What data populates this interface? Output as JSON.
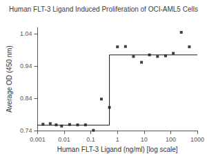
{
  "chart_data": {
    "type": "scatter",
    "title": "Human FLT-3 Ligand Induced Proliferation of OCI-AML5 Cells",
    "xlabel": "Human FLT-3 Ligand (ng/ml) [log scale]",
    "ylabel": "Average OD (450 nm)",
    "log": "x",
    "grid": false,
    "xlim": [
      0.001,
      1000
    ],
    "ylim": [
      0.74,
      1.06
    ],
    "xticks": [
      0.001,
      0.01,
      0.1,
      1,
      10,
      100,
      1000
    ],
    "yticks": [
      0.74,
      0.84,
      0.94,
      1.04
    ],
    "series": [
      {
        "type": "line",
        "color": "#111111",
        "x": [
          0.001,
          0.5,
          0.5,
          1000
        ],
        "values": [
          0.757,
          0.757,
          0.975,
          0.975
        ]
      },
      {
        "type": "scatter",
        "color": "#111111",
        "marker": "square",
        "x": [
          0.0016,
          0.003,
          0.005,
          0.008,
          0.016,
          0.032,
          0.063,
          0.125,
          0.25,
          0.5,
          1.0,
          2.0,
          4.0,
          8.0,
          16.0,
          32.0,
          64.0,
          125.0,
          250.0,
          500.0
        ],
        "values": [
          0.76,
          0.762,
          0.758,
          0.754,
          0.759,
          0.758,
          0.758,
          0.741,
          0.838,
          0.812,
          1.0,
          1.001,
          0.97,
          0.952,
          0.975,
          0.97,
          0.972,
          0.98,
          1.045,
          1.0
        ]
      }
    ]
  }
}
